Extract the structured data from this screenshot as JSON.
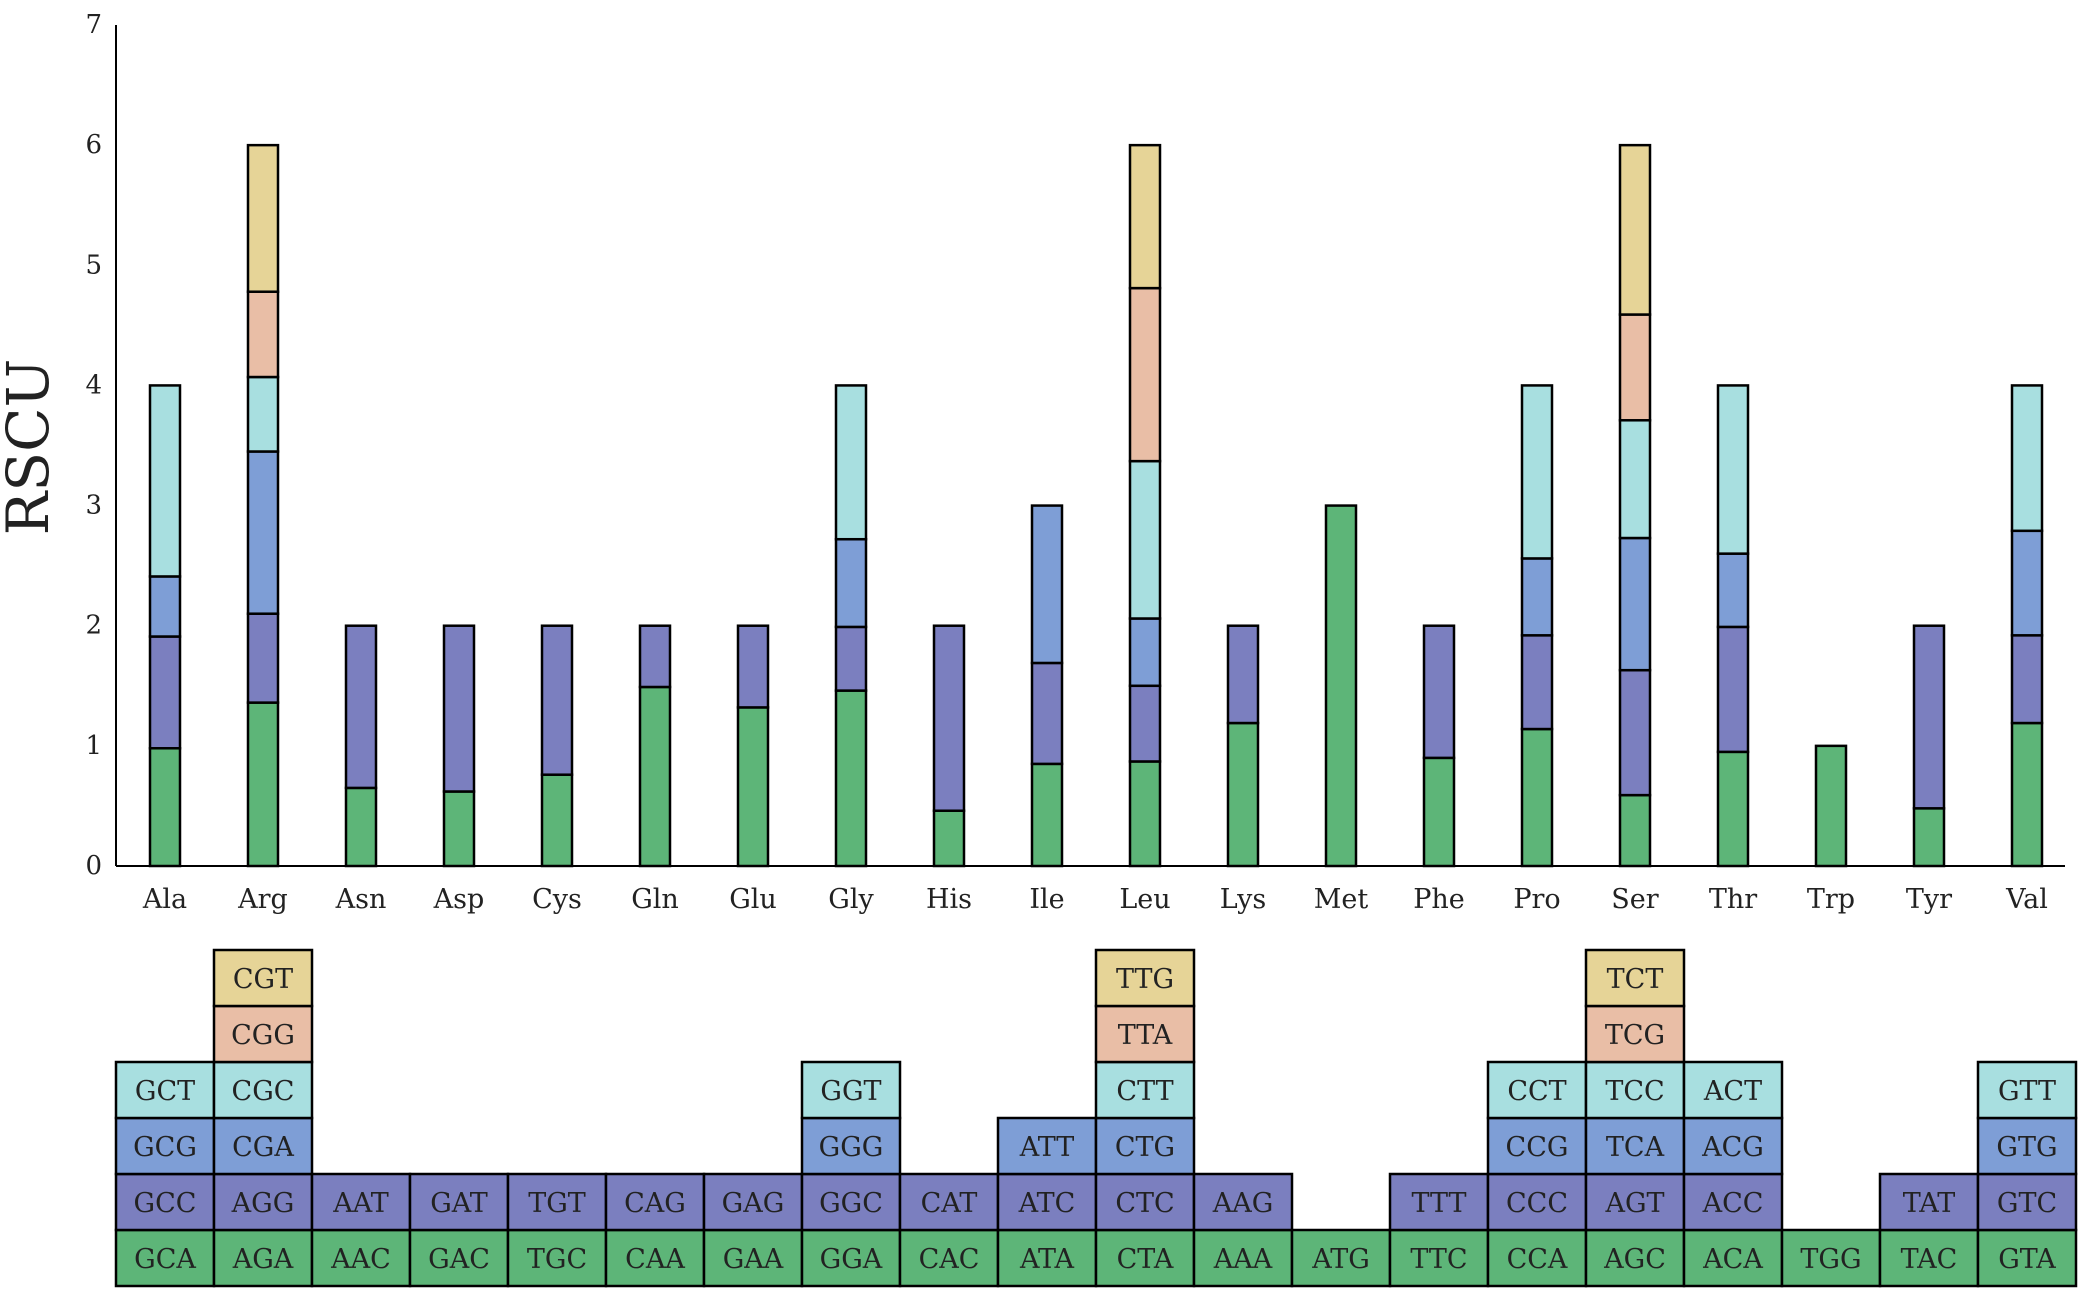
{
  "chart_data": {
    "type": "bar",
    "stacked": true,
    "ylabel": "RSCU",
    "ylim": [
      0,
      7
    ],
    "yticks": [
      "0",
      "1",
      "2",
      "3",
      "4",
      "5",
      "6",
      "7"
    ],
    "grid": false,
    "categories": [
      "Ala",
      "Arg",
      "Asn",
      "Asp",
      "Cys",
      "Gln",
      "Glu",
      "Gly",
      "His",
      "Ile",
      "Leu",
      "Lys",
      "Met",
      "Phe",
      "Pro",
      "Ser",
      "Thr",
      "Trp",
      "Tyr",
      "Val"
    ],
    "layer_colors": [
      "#5db578",
      "#7b7fbf",
      "#7e9ed6",
      "#a8dfe0",
      "#e9bea6",
      "#e6d497"
    ],
    "stacks": [
      {
        "aa": "Ala",
        "values": [
          0.98,
          0.93,
          0.5,
          1.59
        ],
        "codons": [
          "GCA",
          "GCC",
          "GCG",
          "GCT"
        ]
      },
      {
        "aa": "Arg",
        "values": [
          1.36,
          0.74,
          1.35,
          0.62,
          0.71,
          1.22
        ],
        "codons": [
          "AGA",
          "AGG",
          "CGA",
          "CGC",
          "CGG",
          "CGT"
        ]
      },
      {
        "aa": "Asn",
        "values": [
          0.65,
          1.35
        ],
        "codons": [
          "AAC",
          "AAT"
        ]
      },
      {
        "aa": "Asp",
        "values": [
          0.62,
          1.38
        ],
        "codons": [
          "GAC",
          "GAT"
        ]
      },
      {
        "aa": "Cys",
        "values": [
          0.76,
          1.24
        ],
        "codons": [
          "TGC",
          "TGT"
        ]
      },
      {
        "aa": "Gln",
        "values": [
          1.49,
          0.51
        ],
        "codons": [
          "CAA",
          "CAG"
        ]
      },
      {
        "aa": "Glu",
        "values": [
          1.32,
          0.68
        ],
        "codons": [
          "GAA",
          "GAG"
        ]
      },
      {
        "aa": "Gly",
        "values": [
          1.46,
          0.53,
          0.73,
          1.28
        ],
        "codons": [
          "GGA",
          "GGC",
          "GGG",
          "GGT"
        ]
      },
      {
        "aa": "His",
        "values": [
          0.46,
          1.54
        ],
        "codons": [
          "CAC",
          "CAT"
        ]
      },
      {
        "aa": "Ile",
        "values": [
          0.85,
          0.84,
          1.31
        ],
        "codons": [
          "ATA",
          "ATC",
          "ATT"
        ]
      },
      {
        "aa": "Leu",
        "values": [
          0.87,
          0.63,
          0.56,
          1.31,
          1.44,
          1.19
        ],
        "codons": [
          "CTA",
          "CTC",
          "CTG",
          "CTT",
          "TTA",
          "TTG"
        ]
      },
      {
        "aa": "Lys",
        "values": [
          1.19,
          0.81
        ],
        "codons": [
          "AAA",
          "AAG"
        ]
      },
      {
        "aa": "Met",
        "values": [
          3.0
        ],
        "codons": [
          "ATG"
        ]
      },
      {
        "aa": "Phe",
        "values": [
          0.9,
          1.1
        ],
        "codons": [
          "TTC",
          "TTT"
        ]
      },
      {
        "aa": "Pro",
        "values": [
          1.14,
          0.78,
          0.64,
          1.44
        ],
        "codons": [
          "CCA",
          "CCC",
          "CCG",
          "CCT"
        ]
      },
      {
        "aa": "Ser",
        "values": [
          0.59,
          1.04,
          1.1,
          0.98,
          0.88,
          1.41
        ],
        "codons": [
          "AGC",
          "AGT",
          "TCA",
          "TCC",
          "TCG",
          "TCT"
        ]
      },
      {
        "aa": "Thr",
        "values": [
          0.95,
          1.04,
          0.61,
          1.4
        ],
        "codons": [
          "ACA",
          "ACC",
          "ACG",
          "ACT"
        ]
      },
      {
        "aa": "Trp",
        "values": [
          1.0
        ],
        "codons": [
          "TGG"
        ]
      },
      {
        "aa": "Tyr",
        "values": [
          0.48,
          1.52
        ],
        "codons": [
          "TAC",
          "TAT"
        ]
      },
      {
        "aa": "Val",
        "values": [
          1.19,
          0.73,
          0.87,
          1.21
        ],
        "codons": [
          "GTA",
          "GTC",
          "GTG",
          "GTT"
        ]
      }
    ]
  }
}
